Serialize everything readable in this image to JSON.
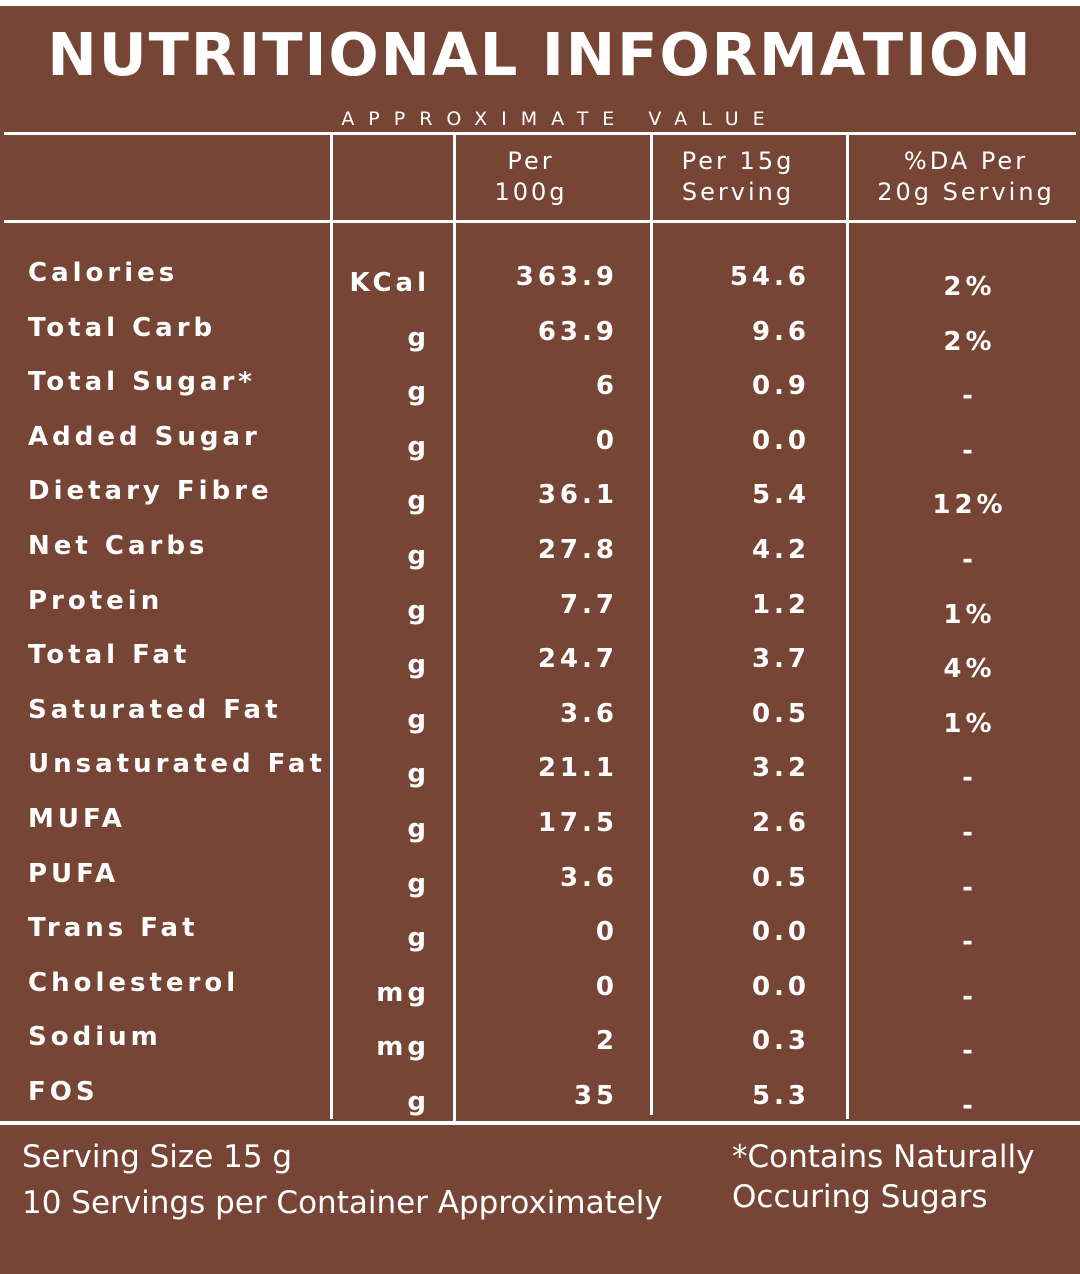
{
  "title": "NUTRITIONAL INFORMATION",
  "subtitle": "APPROXIMATE VALUE",
  "columns": {
    "per_100g": [
      "Per",
      "100g"
    ],
    "per_15g": [
      "Per 15g",
      "Serving"
    ],
    "da_per_20g": [
      "%DA Per",
      "20g Serving"
    ]
  },
  "rows": [
    {
      "nutrient": "Calories",
      "unit": "KCal",
      "per_100g": "363.9",
      "per_15g": "54.6",
      "da": "2%"
    },
    {
      "nutrient": "Total Carb",
      "unit": "g",
      "per_100g": "63.9",
      "per_15g": "9.6",
      "da": "2%"
    },
    {
      "nutrient": "Total Sugar*",
      "unit": "g",
      "per_100g": "6",
      "per_15g": "0.9",
      "da": "-"
    },
    {
      "nutrient": "Added Sugar",
      "unit": "g",
      "per_100g": "0",
      "per_15g": "0.0",
      "da": "-"
    },
    {
      "nutrient": "Dietary Fibre",
      "unit": "g",
      "per_100g": "36.1",
      "per_15g": "5.4",
      "da": "12%"
    },
    {
      "nutrient": "Net Carbs",
      "unit": "g",
      "per_100g": "27.8",
      "per_15g": "4.2",
      "da": "-"
    },
    {
      "nutrient": "Protein",
      "unit": "g",
      "per_100g": "7.7",
      "per_15g": "1.2",
      "da": "1%"
    },
    {
      "nutrient": "Total Fat",
      "unit": "g",
      "per_100g": "24.7",
      "per_15g": "3.7",
      "da": "4%"
    },
    {
      "nutrient": "Saturated Fat",
      "unit": "g",
      "per_100g": "3.6",
      "per_15g": "0.5",
      "da": "1%"
    },
    {
      "nutrient": "Unsaturated Fat",
      "unit": "g",
      "per_100g": "21.1",
      "per_15g": "3.2",
      "da": "-"
    },
    {
      "nutrient": "MUFA",
      "unit": "g",
      "per_100g": "17.5",
      "per_15g": "2.6",
      "da": "-"
    },
    {
      "nutrient": "PUFA",
      "unit": "g",
      "per_100g": "3.6",
      "per_15g": "0.5",
      "da": "-"
    },
    {
      "nutrient": "Trans Fat",
      "unit": "g",
      "per_100g": "0",
      "per_15g": "0.0",
      "da": "-"
    },
    {
      "nutrient": "Cholesterol",
      "unit": "mg",
      "per_100g": "0",
      "per_15g": "0.0",
      "da": "-"
    },
    {
      "nutrient": "Sodium",
      "unit": "mg",
      "per_100g": "2",
      "per_15g": "0.3",
      "da": "-"
    },
    {
      "nutrient": "FOS",
      "unit": "g",
      "per_100g": "35",
      "per_15g": "5.3",
      "da": "-"
    }
  ],
  "footer": {
    "serving_size": "Serving Size 15 g",
    "servings_per_container": "10 Servings per Container Approximately",
    "note_line1": "*Contains Naturally",
    "note_line2": "Occuring Sugars"
  },
  "colors": {
    "background": "#774535",
    "text": "#ffffff"
  }
}
